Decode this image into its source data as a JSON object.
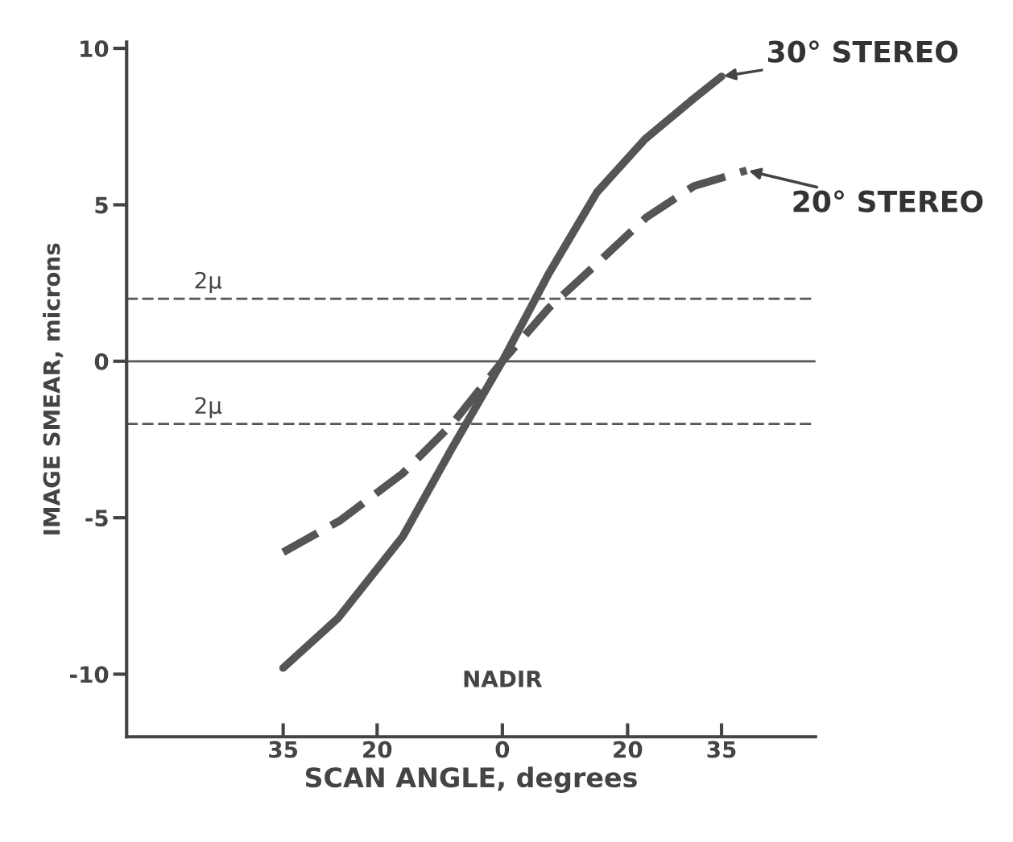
{
  "chart_data": {
    "type": "line",
    "xlabel": "SCAN ANGLE, degrees",
    "ylabel": "IMAGE SMEAR, microns",
    "xlim": [
      -60,
      50
    ],
    "ylim": [
      -12,
      10.2
    ],
    "xticks": [
      {
        "value": -35,
        "label": "35"
      },
      {
        "value": -20,
        "label": "20"
      },
      {
        "value": 0,
        "label": "0"
      },
      {
        "value": 20,
        "label": "20"
      },
      {
        "value": 35,
        "label": "35"
      }
    ],
    "yticks": [
      {
        "value": 10,
        "label": "10"
      },
      {
        "value": 5,
        "label": "5"
      },
      {
        "value": 0,
        "label": "0"
      },
      {
        "value": -5,
        "label": "-5"
      },
      {
        "value": -10,
        "label": "-10"
      }
    ],
    "grid": false,
    "legend": false,
    "series": [
      {
        "name": "30° STEREO",
        "color": "#555555",
        "line_style": "solid",
        "x": [
          -35,
          -26.2,
          -15.9,
          -8.1,
          0,
          7.4,
          15.1,
          22.8,
          30.6,
          35
        ],
        "values": [
          -9.8,
          -8.2,
          -5.6,
          -2.8,
          0,
          2.8,
          5.4,
          7.1,
          8.4,
          9.1
        ]
      },
      {
        "name": "20° STEREO",
        "color": "#555555",
        "line_style": "dashed",
        "x": [
          -35,
          -26,
          -16,
          -8,
          0,
          7.4,
          15,
          23,
          30.6,
          39
        ],
        "values": [
          -6.1,
          -5.1,
          -3.6,
          -2.0,
          0,
          1.7,
          3.1,
          4.6,
          5.6,
          6.1
        ]
      }
    ],
    "ref_lines": [
      {
        "axis": "y",
        "value": 2,
        "label": "2μ",
        "line_style": "dashed",
        "color": "#555555"
      },
      {
        "axis": "y",
        "value": 0,
        "line_style": "solid",
        "color": "#555555"
      },
      {
        "axis": "y",
        "value": -2,
        "label": "2μ",
        "line_style": "dashed",
        "color": "#555555"
      }
    ],
    "annotations": [
      "NADIR"
    ]
  }
}
